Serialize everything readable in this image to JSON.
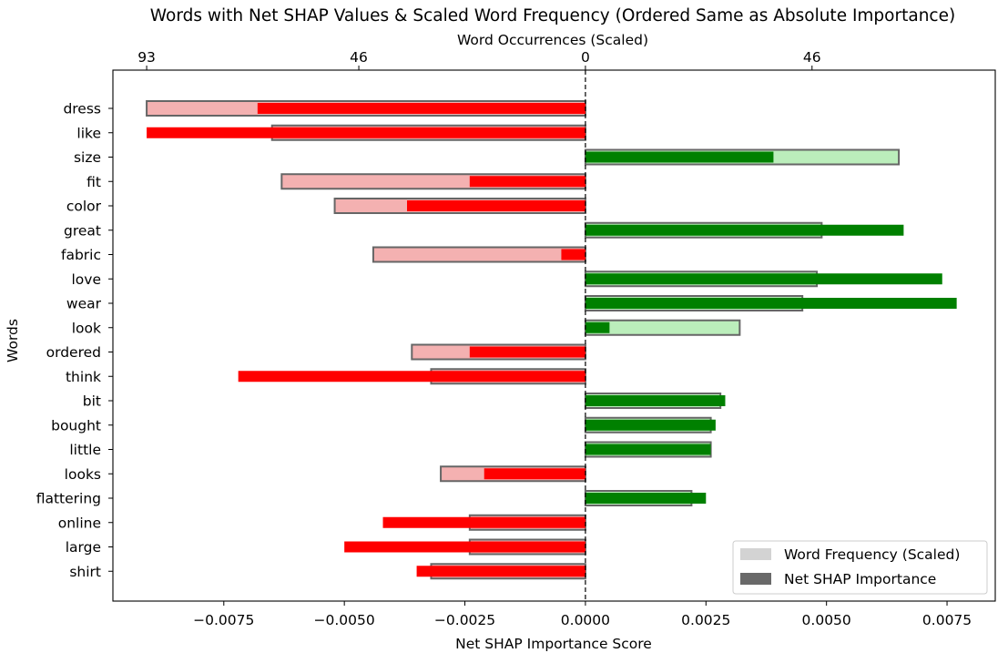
{
  "chart_data": {
    "type": "bar",
    "orientation": "horizontal",
    "title": "Words with Net SHAP Values & Scaled Word Frequency (Ordered Same as Absolute Importance)",
    "xlabel": "Net SHAP Importance Score",
    "ylabel": "Words",
    "top_xlabel": "Word Occurrences (Scaled)",
    "xlim": [
      -0.0098,
      0.0085
    ],
    "x_ticks": [
      -0.0075,
      -0.005,
      -0.0025,
      0.0,
      0.0025,
      0.005,
      0.0075
    ],
    "x_tick_labels": [
      "−0.0075",
      "−0.0050",
      "−0.0025",
      "0.0000",
      "0.0025",
      "0.0050",
      "0.0075"
    ],
    "top_ticks": [
      -0.0091,
      -0.0047,
      0.0,
      0.0047,
      0.0091
    ],
    "top_tick_labels": [
      "93",
      "46",
      "0",
      "46",
      "93"
    ],
    "categories": [
      "dress",
      "like",
      "size",
      "fit",
      "color",
      "great",
      "fabric",
      "love",
      "wear",
      "look",
      "ordered",
      "think",
      "bit",
      "bought",
      "little",
      "looks",
      "flattering",
      "online",
      "large",
      "shirt"
    ],
    "series": [
      {
        "name": "Word Frequency (Scaled)",
        "values": [
          -0.0091,
          -0.0065,
          0.0065,
          -0.0063,
          -0.0052,
          0.0049,
          -0.0044,
          0.0048,
          0.0045,
          0.0032,
          -0.0036,
          -0.0032,
          0.0028,
          0.0026,
          0.0026,
          -0.003,
          0.0022,
          -0.0024,
          -0.0024,
          -0.0032
        ],
        "colors": {
          "positive": "#bbeebb",
          "negative": "#f4b1b1",
          "edge": "#666666"
        }
      },
      {
        "name": "Net SHAP Importance",
        "values": [
          -0.0068,
          -0.0091,
          0.0039,
          -0.0024,
          -0.0037,
          0.0066,
          -0.0005,
          0.0074,
          0.0077,
          0.0005,
          -0.0024,
          -0.0072,
          0.0029,
          0.0027,
          0.0026,
          -0.0021,
          0.0025,
          -0.0042,
          -0.005,
          -0.0035
        ],
        "colors": {
          "positive": "#008000",
          "negative": "#ff0000"
        }
      }
    ],
    "legend": {
      "position": "lower-right",
      "entries": [
        {
          "label": "Word Frequency (Scaled)",
          "swatch": "#d3d3d3"
        },
        {
          "label": "Net SHAP Importance",
          "swatch": "#696969"
        }
      ]
    }
  }
}
